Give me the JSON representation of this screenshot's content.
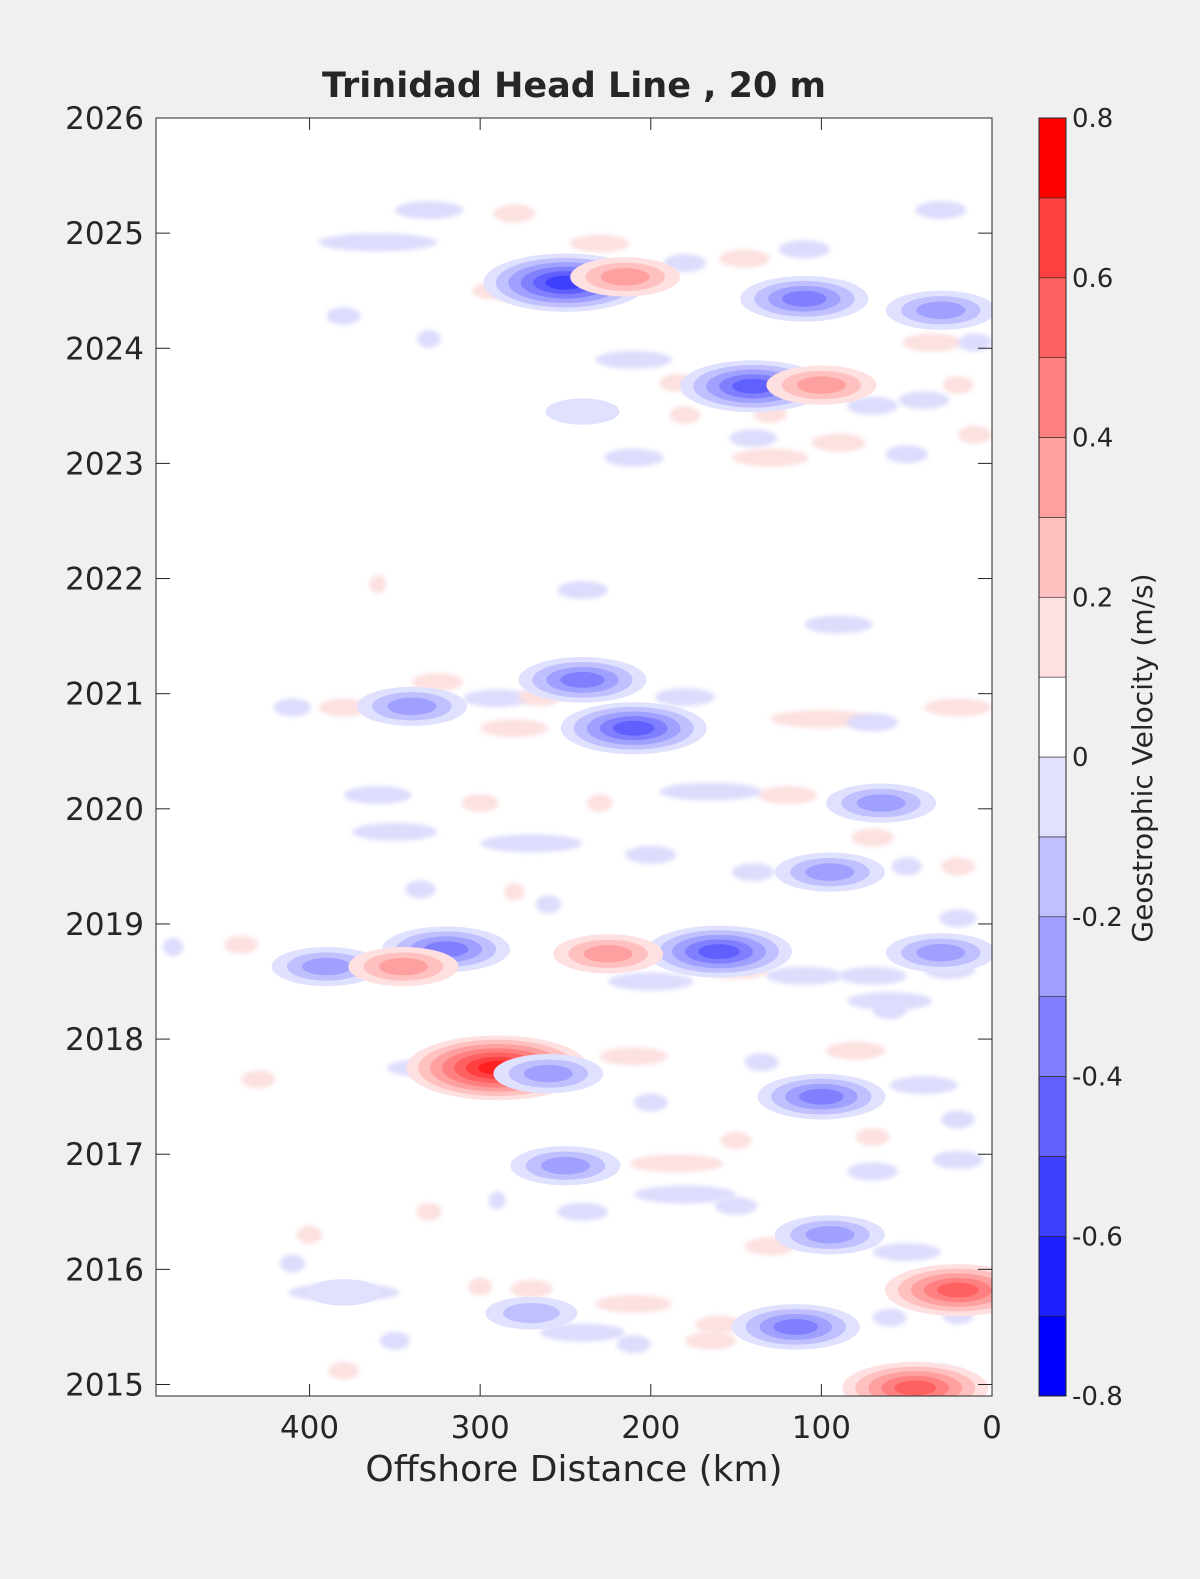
{
  "chart_data": {
    "type": "heatmap",
    "subtype": "filled-contour",
    "title": "Trinidad Head Line , 20 m",
    "xlabel": "Offshore Distance (km)",
    "ylabel": "",
    "xlim": [
      490,
      0
    ],
    "x_direction": "reversed",
    "x_ticks": [
      400,
      300,
      200,
      100,
      0
    ],
    "x_tick_labels": [
      "400",
      "300",
      "200",
      "100",
      "0"
    ],
    "ylim": [
      2014.9,
      2026
    ],
    "y_ticks": [
      2015,
      2016,
      2017,
      2018,
      2019,
      2020,
      2021,
      2022,
      2023,
      2024,
      2025,
      2026
    ],
    "y_tick_labels": [
      "2015",
      "2016",
      "2017",
      "2018",
      "2019",
      "2020",
      "2021",
      "2022",
      "2023",
      "2024",
      "2025",
      "2026"
    ],
    "grid": false,
    "colorbar": {
      "label": "Geostrophic Velocity (m/s)",
      "limits": [
        -0.8,
        0.8
      ],
      "levels": [
        -0.8,
        -0.7,
        -0.6,
        -0.5,
        -0.4,
        -0.3,
        -0.2,
        -0.1,
        0.0,
        0.1,
        0.2,
        0.3,
        0.4,
        0.5,
        0.6,
        0.7,
        0.8
      ],
      "ticks": [
        0.8,
        0.6,
        0.4,
        0.2,
        0,
        -0.2,
        -0.4,
        -0.6,
        -0.8
      ],
      "tick_labels": [
        "0.8",
        "0.6",
        "0.4",
        "0.2",
        "0",
        "-0.2",
        "-0.4",
        "-0.6",
        "-0.8"
      ],
      "colors": [
        "#0000ff",
        "#2020ff",
        "#4040ff",
        "#6060ff",
        "#8080ff",
        "#a0a0ff",
        "#c0c0ff",
        "#e0e0ff",
        "#ffffff",
        "#ffffff",
        "#ffe0e0",
        "#ffc0c0",
        "#ffa0a0",
        "#ff8080",
        "#ff6060",
        "#ff4040",
        "#ff2020",
        "#ff0000"
      ]
    },
    "features": [
      {
        "x": 250,
        "y": 2024.57,
        "v": -0.6
      },
      {
        "x": 215,
        "y": 2024.62,
        "v": 0.35
      },
      {
        "x": 110,
        "y": 2024.43,
        "v": -0.4
      },
      {
        "x": 30,
        "y": 2024.33,
        "v": -0.3
      },
      {
        "x": 140,
        "y": 2023.67,
        "v": -0.5
      },
      {
        "x": 100,
        "y": 2023.68,
        "v": 0.3
      },
      {
        "x": 240,
        "y": 2023.45,
        "v": -0.15
      },
      {
        "x": 240,
        "y": 2021.12,
        "v": -0.4
      },
      {
        "x": 210,
        "y": 2020.7,
        "v": -0.5
      },
      {
        "x": 340,
        "y": 2020.89,
        "v": -0.3
      },
      {
        "x": 65,
        "y": 2020.05,
        "v": -0.3
      },
      {
        "x": 95,
        "y": 2019.45,
        "v": -0.25
      },
      {
        "x": 160,
        "y": 2018.76,
        "v": -0.5
      },
      {
        "x": 225,
        "y": 2018.74,
        "v": 0.3
      },
      {
        "x": 320,
        "y": 2018.78,
        "v": -0.4
      },
      {
        "x": 390,
        "y": 2018.63,
        "v": -0.35
      },
      {
        "x": 345,
        "y": 2018.63,
        "v": 0.3
      },
      {
        "x": 30,
        "y": 2018.75,
        "v": -0.3
      },
      {
        "x": 290,
        "y": 2017.75,
        "v": 0.7
      },
      {
        "x": 260,
        "y": 2017.7,
        "v": -0.35
      },
      {
        "x": 100,
        "y": 2017.5,
        "v": -0.4
      },
      {
        "x": 250,
        "y": 2016.9,
        "v": -0.3
      },
      {
        "x": 95,
        "y": 2016.3,
        "v": -0.35
      },
      {
        "x": 115,
        "y": 2015.5,
        "v": -0.4
      },
      {
        "x": 20,
        "y": 2015.82,
        "v": 0.45
      },
      {
        "x": 45,
        "y": 2014.97,
        "v": 0.5
      },
      {
        "x": 270,
        "y": 2015.62,
        "v": -0.2
      },
      {
        "x": 380,
        "y": 2015.8,
        "v": -0.15
      }
    ]
  }
}
